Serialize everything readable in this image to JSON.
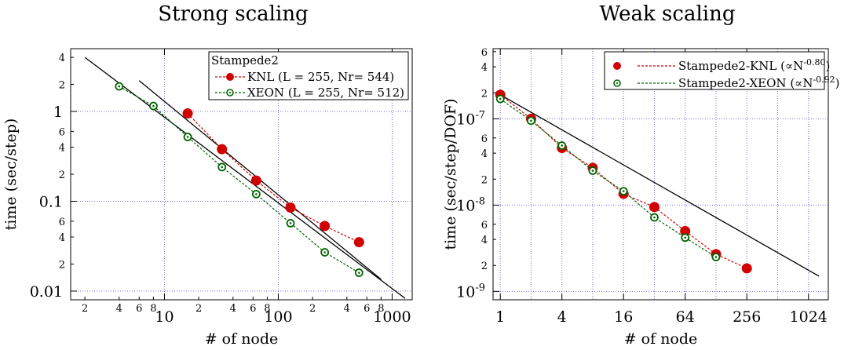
{
  "chart_data": [
    {
      "type": "scatter",
      "title": "Strong scaling",
      "xlabel": "# of node",
      "ylabel": "time (sec/step)",
      "xscale": "log",
      "yscale": "log",
      "xlim": [
        1.5,
        1500
      ],
      "ylim": [
        0.008,
        5
      ],
      "grid": "dotted at decades",
      "legend_placement": "top-right",
      "legend_title": "Stampede2",
      "x_major_ticks": [
        {
          "value": 10,
          "label": "10"
        },
        {
          "value": 100,
          "label": "100"
        },
        {
          "value": 1000,
          "label": "1000"
        }
      ],
      "x_minor_ticks": [
        {
          "value": 2,
          "label": "2"
        },
        {
          "value": 4,
          "label": "4"
        },
        {
          "value": 6,
          "label": "6"
        },
        {
          "value": 8,
          "label": "8"
        },
        {
          "value": 20,
          "label": "2"
        },
        {
          "value": 40,
          "label": "4"
        },
        {
          "value": 60,
          "label": "6"
        },
        {
          "value": 80,
          "label": "8"
        },
        {
          "value": 200,
          "label": "2"
        },
        {
          "value": 400,
          "label": "4"
        },
        {
          "value": 600,
          "label": "6"
        },
        {
          "value": 800,
          "label": "8"
        }
      ],
      "y_major_ticks": [
        {
          "value": 1,
          "label": "1"
        },
        {
          "value": 0.1,
          "label": "0.1"
        },
        {
          "value": 0.01,
          "label": "0.01"
        }
      ],
      "y_minor_ticks": [
        {
          "value": 4,
          "label": "4"
        },
        {
          "value": 2,
          "label": "2"
        },
        {
          "value": 0.6,
          "label": "6"
        },
        {
          "value": 0.4,
          "label": "4"
        },
        {
          "value": 0.2,
          "label": "2"
        },
        {
          "value": 0.06,
          "label": "6"
        },
        {
          "value": 0.04,
          "label": "4"
        },
        {
          "value": 0.02,
          "label": "2"
        }
      ],
      "series": [
        {
          "name": "KNL (L = 255, Nr= 544)",
          "color": "#d00000",
          "marker": "filled-circle",
          "x": [
            16,
            32,
            64,
            128,
            256,
            512
          ],
          "y": [
            0.95,
            0.38,
            0.17,
            0.085,
            0.053,
            0.035
          ]
        },
        {
          "name": "XEON  (L = 255, Nr= 512)",
          "color": "#006400",
          "marker": "open-circle-dot",
          "x": [
            4,
            8,
            16,
            32,
            64,
            128,
            256,
            512
          ],
          "y": [
            1.9,
            1.15,
            0.52,
            0.24,
            0.12,
            0.057,
            0.027,
            0.016
          ]
        }
      ],
      "reference_lines": [
        {
          "x": [
            2,
            1300
          ],
          "y": [
            4.0,
            0.0083
          ]
        },
        {
          "x": [
            6,
            800
          ],
          "y": [
            2.2,
            0.0135
          ]
        }
      ]
    },
    {
      "type": "scatter",
      "title": "Weak scaling",
      "xlabel": "# of node",
      "ylabel": "time (sec/step/DOF)",
      "xscale": "log",
      "yscale": "log",
      "xlim": [
        0.85,
        1600
      ],
      "ylim": [
        8e-10,
        6.5e-07
      ],
      "grid": "dotted",
      "legend_placement": "top-right",
      "x_major_ticks": [
        {
          "value": 1,
          "label": "1"
        },
        {
          "value": 4,
          "label": "4"
        },
        {
          "value": 16,
          "label": "16"
        },
        {
          "value": 64,
          "label": "64"
        },
        {
          "value": 256,
          "label": "256"
        },
        {
          "value": 1024,
          "label": "1024"
        }
      ],
      "x_grid": [
        1,
        2,
        4,
        8,
        16,
        32,
        64,
        128,
        256,
        512,
        1024
      ],
      "y_major_ticks": [
        {
          "value": 1e-07,
          "base": "10",
          "exp": "-7"
        },
        {
          "value": 1e-08,
          "base": "10",
          "exp": "-8"
        },
        {
          "value": 1e-09,
          "base": "10",
          "exp": "-9"
        }
      ],
      "y_minor_ticks": [
        {
          "value": 6e-07,
          "label": "6"
        },
        {
          "value": 4e-07,
          "label": "4"
        },
        {
          "value": 2e-07,
          "label": "2"
        },
        {
          "value": 6e-08,
          "label": "6"
        },
        {
          "value": 4e-08,
          "label": "4"
        },
        {
          "value": 2e-08,
          "label": "2"
        },
        {
          "value": 6e-09,
          "label": "6"
        },
        {
          "value": 4e-09,
          "label": "4"
        },
        {
          "value": 2e-09,
          "label": "2"
        }
      ],
      "series": [
        {
          "name": "Stampede2-KNL",
          "legend_suffix_prefix": "(∝N",
          "legend_suffix_exp": "-0.80",
          "legend_suffix_close": ")",
          "color": "#d00000",
          "marker": "filled-circle",
          "x": [
            1,
            2,
            4,
            8,
            16,
            32,
            64,
            128,
            256
          ],
          "y": [
            1.9e-07,
            1e-07,
            4.6e-08,
            2.7e-08,
            1.35e-08,
            9.5e-09,
            5e-09,
            2.7e-09,
            1.85e-09
          ]
        },
        {
          "name": "Stampede2-XEON",
          "legend_suffix_prefix": "(∝N",
          "legend_suffix_exp": "-0.92",
          "legend_suffix_close": ")",
          "color": "#006400",
          "marker": "open-circle-dot",
          "x": [
            1,
            2,
            4,
            8,
            16,
            32,
            64,
            128
          ],
          "y": [
            1.7e-07,
            9.5e-08,
            4.9e-08,
            2.5e-08,
            1.45e-08,
            7.2e-09,
            4.2e-09,
            2.5e-09
          ]
        }
      ],
      "reference_lines": [
        {
          "x": [
            1,
            1300
          ],
          "y": [
            1.9e-07,
            1.5e-09
          ]
        }
      ]
    }
  ]
}
